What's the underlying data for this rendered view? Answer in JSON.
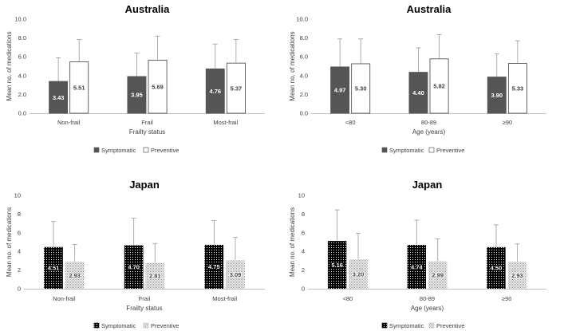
{
  "figure": {
    "colors": {
      "symptomatic_solid": "#555555",
      "preventive_solid": "#ffffff",
      "symptomatic_dotted_bg": "#000000",
      "symptomatic_dotted_dot": "#ffffff",
      "preventive_dotted_bg": "#ffffff",
      "preventive_dotted_dot": "#9a9a9a",
      "error_bar": "#9a9a9a",
      "axis": "#bfbfbf"
    }
  },
  "chart_data": [
    {
      "type": "bar",
      "title": "Australia",
      "xlabel": "Frailty status",
      "ylabel": "Mean no. of medications",
      "categories": [
        "Non-frail",
        "Frail",
        "Most-frail"
      ],
      "ylim": [
        0,
        10
      ],
      "yticks": [
        "0.0",
        "2.0",
        "4.0",
        "6.0",
        "8.0",
        "10.0"
      ],
      "style": "solid",
      "series": [
        {
          "name": "Symptomatic",
          "values": [
            3.43,
            3.95,
            4.76
          ],
          "labels": [
            "3.43",
            "3.95",
            "4.76"
          ],
          "err_upper": [
            5.9,
            6.4,
            7.35
          ]
        },
        {
          "name": "Preventive",
          "values": [
            5.51,
            5.69,
            5.37
          ],
          "labels": [
            "5.51",
            "5.69",
            "5.37"
          ],
          "err_upper": [
            7.85,
            8.2,
            7.85
          ]
        }
      ],
      "legend": [
        "Symptomatic",
        "Preventive"
      ]
    },
    {
      "type": "bar",
      "title": "Australia",
      "xlabel": "Age (years)",
      "ylabel": "Mean no. of medications",
      "categories": [
        "<80",
        "80-89",
        "≥90"
      ],
      "ylim": [
        0,
        10
      ],
      "yticks": [
        "0.0",
        "2.0",
        "4.0",
        "6.0",
        "8.0",
        "10.0"
      ],
      "style": "solid",
      "series": [
        {
          "name": "Symptomatic",
          "values": [
            4.97,
            4.4,
            3.9
          ],
          "labels": [
            "4.97",
            "4.40",
            "3.90"
          ],
          "err_upper": [
            7.9,
            6.95,
            6.3
          ]
        },
        {
          "name": "Preventive",
          "values": [
            5.3,
            5.82,
            5.33
          ],
          "labels": [
            "5.30",
            "5.82",
            "5.33"
          ],
          "err_upper": [
            7.9,
            8.35,
            7.7
          ]
        }
      ],
      "legend": [
        "Symptomatic",
        "Preventive"
      ]
    },
    {
      "type": "bar",
      "title": "Japan",
      "xlabel": "Frailty status",
      "ylabel": "Mean no. of medications",
      "categories": [
        "Non-frail",
        "Frail",
        "Most-frail"
      ],
      "ylim": [
        0,
        10
      ],
      "yticks": [
        "0",
        "2",
        "4",
        "6",
        "8",
        "10"
      ],
      "style": "dotted",
      "series": [
        {
          "name": "Symptomatic",
          "values": [
            4.51,
            4.7,
            4.75
          ],
          "labels": [
            "4.51",
            "4.70",
            "4.75"
          ],
          "err_upper": [
            7.2,
            7.55,
            7.3
          ]
        },
        {
          "name": "Preventive",
          "values": [
            2.93,
            2.81,
            3.09
          ],
          "labels": [
            "2.93",
            "2.81",
            "3.09"
          ],
          "err_upper": [
            4.75,
            4.85,
            5.5
          ]
        }
      ],
      "legend": [
        "Symptomatic",
        "Preventive"
      ]
    },
    {
      "type": "bar",
      "title": "Japan",
      "xlabel": "Age (years)",
      "ylabel": "Mean no. of medications",
      "categories": [
        "<80",
        "80-89",
        "≥90"
      ],
      "ylim": [
        0,
        10
      ],
      "yticks": [
        "0",
        "2",
        "4",
        "6",
        "8",
        "10"
      ],
      "style": "dotted",
      "series": [
        {
          "name": "Symptomatic",
          "values": [
            5.16,
            4.74,
            4.5
          ],
          "labels": [
            "5.16",
            "4.74",
            "4.50"
          ],
          "err_upper": [
            8.45,
            7.35,
            6.85
          ]
        },
        {
          "name": "Preventive",
          "values": [
            3.2,
            2.99,
            2.93
          ],
          "labels": [
            "3.20",
            "2.99",
            "2.93"
          ],
          "err_upper": [
            5.95,
            5.35,
            4.8
          ]
        }
      ],
      "legend": [
        "Symptomatic",
        "Preventive"
      ]
    }
  ]
}
